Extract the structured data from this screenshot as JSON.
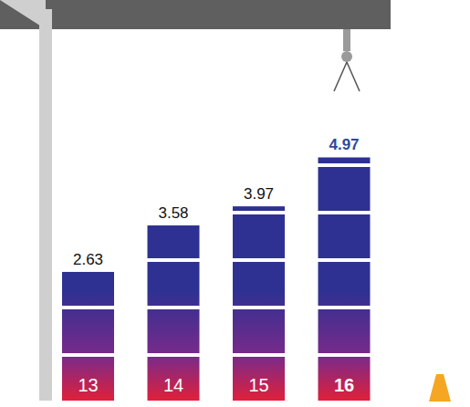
{
  "chart_data": {
    "type": "bar",
    "categories": [
      "13",
      "14",
      "15",
      "16"
    ],
    "values": [
      2.63,
      3.58,
      3.97,
      4.97
    ],
    "color": "#2e3192",
    "ylim": [
      0,
      8
    ],
    "data_labels": true,
    "tick_labels": "x",
    "grid": false
  }
}
